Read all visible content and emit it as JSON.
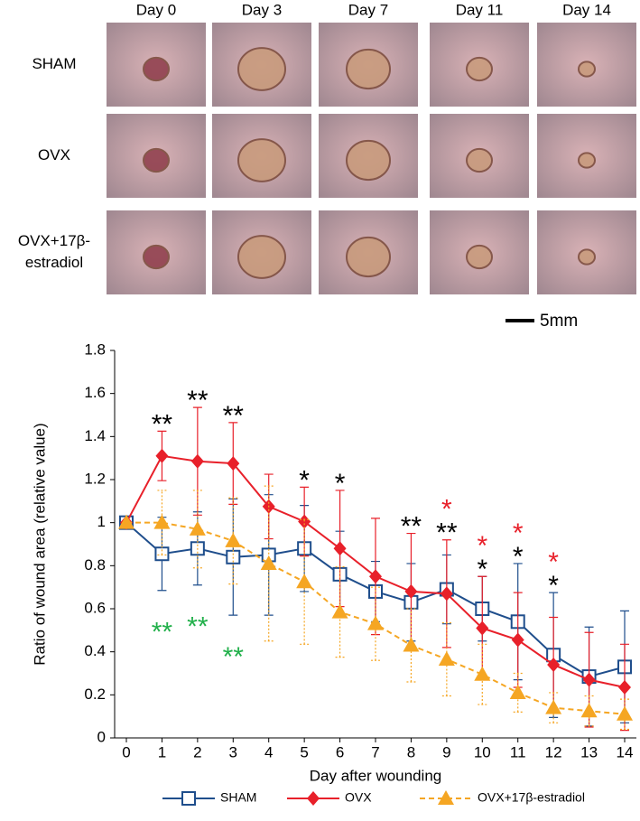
{
  "figure_panel": {
    "columns": [
      "Day 0",
      "Day 3",
      "Day 7",
      "Day 11",
      "Day 14"
    ],
    "rows": [
      [
        "SHAM"
      ],
      [
        "OVX"
      ],
      [
        "OVX+17β-",
        "estradiol"
      ]
    ],
    "scale_bar": "5mm"
  },
  "chart_data": {
    "type": "line",
    "x_label": "Day after wounding",
    "y_label": "Ratio of wound area (relative value)",
    "x": [
      0,
      1,
      2,
      3,
      4,
      5,
      6,
      7,
      8,
      9,
      10,
      11,
      12,
      13,
      14
    ],
    "xlim": [
      -0.5,
      14.5
    ],
    "xticks": [
      0,
      1,
      2,
      3,
      4,
      5,
      6,
      7,
      8,
      9,
      10,
      11,
      12,
      13,
      14
    ],
    "ylim": [
      0,
      1.8
    ],
    "yticks": [
      0,
      0.2,
      0.4,
      0.6,
      0.8,
      1,
      1.2,
      1.4,
      1.6,
      1.8
    ],
    "series": [
      {
        "name": "SHAM",
        "color": "#1f4e8c",
        "marker": "square-open",
        "dashed": false,
        "values": [
          1.0,
          0.855,
          0.88,
          0.84,
          0.85,
          0.88,
          0.76,
          0.68,
          0.63,
          0.69,
          0.6,
          0.54,
          0.385,
          0.285,
          0.33
        ],
        "errors": [
          0,
          0.17,
          0.17,
          0.27,
          0.28,
          0.2,
          0.2,
          0.14,
          0.18,
          0.16,
          0.15,
          0.27,
          0.29,
          0.23,
          0.26
        ]
      },
      {
        "name": "OVX",
        "color": "#e8202a",
        "marker": "diamond",
        "dashed": false,
        "values": [
          1.0,
          1.31,
          1.285,
          1.275,
          1.075,
          1.005,
          0.88,
          0.75,
          0.68,
          0.67,
          0.51,
          0.455,
          0.34,
          0.27,
          0.235
        ],
        "errors": [
          0,
          0.115,
          0.25,
          0.19,
          0.15,
          0.16,
          0.27,
          0.27,
          0.27,
          0.25,
          0.24,
          0.22,
          0.22,
          0.22,
          0.2
        ]
      },
      {
        "name": "OVX+17β-estradiol",
        "color": "#f5a623",
        "marker": "triangle",
        "dashed": true,
        "values": [
          1.0,
          1.0,
          0.97,
          0.915,
          0.81,
          0.725,
          0.585,
          0.53,
          0.43,
          0.365,
          0.295,
          0.21,
          0.14,
          0.125,
          0.11
        ],
        "errors": [
          0,
          0.15,
          0.18,
          0.2,
          0.36,
          0.29,
          0.21,
          0.17,
          0.17,
          0.17,
          0.14,
          0.09,
          0.07,
          0.07,
          0.07
        ]
      }
    ],
    "annotations": [
      {
        "x": 1,
        "text": "**",
        "color": "#000000"
      },
      {
        "x": 2,
        "text": "**",
        "color": "#000000"
      },
      {
        "x": 3,
        "text": "**",
        "color": "#000000"
      },
      {
        "x": 5,
        "text": "*",
        "color": "#000000"
      },
      {
        "x": 6,
        "text": "*",
        "color": "#000000"
      },
      {
        "x": 8,
        "text": "**",
        "color": "#000000"
      },
      {
        "x": 9,
        "text": "**",
        "color": "#000000"
      },
      {
        "x": 9,
        "text": "*",
        "color": "#e8202a"
      },
      {
        "x": 10,
        "text": "*",
        "color": "#000000"
      },
      {
        "x": 10,
        "text": "*",
        "color": "#e8202a"
      },
      {
        "x": 11,
        "text": "*",
        "color": "#000000"
      },
      {
        "x": 11,
        "text": "*",
        "color": "#e8202a"
      },
      {
        "x": 12,
        "text": "*",
        "color": "#000000"
      },
      {
        "x": 12,
        "text": "*",
        "color": "#e8202a"
      },
      {
        "x": 1,
        "text": "**",
        "color": "#22b04b"
      },
      {
        "x": 2,
        "text": "**",
        "color": "#22b04b"
      },
      {
        "x": 3,
        "text": "**",
        "color": "#22b04b"
      }
    ]
  }
}
